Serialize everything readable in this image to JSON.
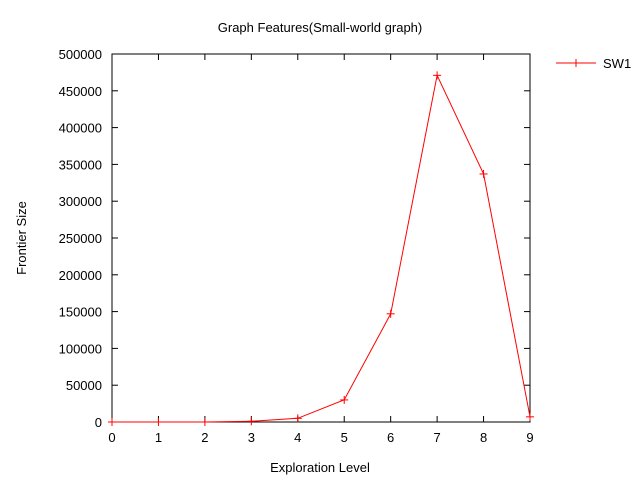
{
  "chart_data": {
    "type": "line",
    "title": "Graph Features(Small-world graph)",
    "xlabel": "Exploration Level",
    "ylabel": "Frontier Size",
    "xlim": [
      0,
      9
    ],
    "ylim": [
      0,
      500000
    ],
    "x_ticks": [
      0,
      1,
      2,
      3,
      4,
      5,
      6,
      7,
      8,
      9
    ],
    "y_ticks": [
      0,
      50000,
      100000,
      150000,
      200000,
      250000,
      300000,
      350000,
      400000,
      450000,
      500000
    ],
    "grid": false,
    "legend_position": "outside-top-right",
    "series": [
      {
        "name": "SW1",
        "color": "#ff0000",
        "marker": "plus",
        "x": [
          0,
          1,
          2,
          3,
          4,
          5,
          6,
          7,
          8,
          9
        ],
        "y": [
          0,
          0,
          0,
          1000,
          5000,
          30000,
          147000,
          471000,
          337000,
          7000
        ]
      }
    ]
  }
}
